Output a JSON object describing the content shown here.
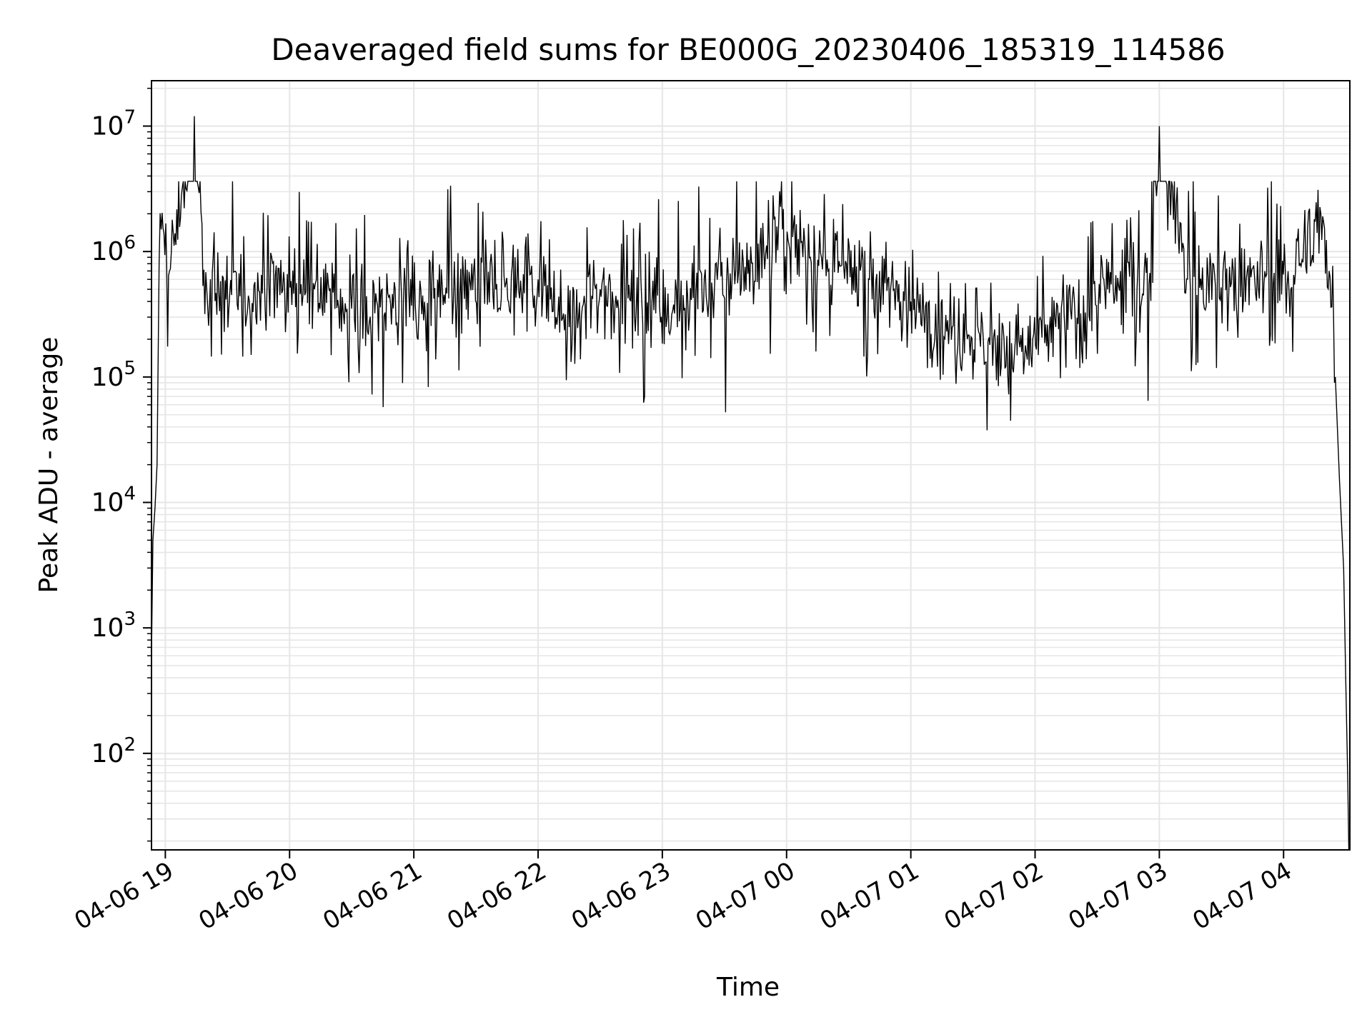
{
  "chart_data": {
    "type": "line",
    "title": "Deaveraged field sums for BE000G_20230406_185319_114586",
    "xlabel": "Time",
    "ylabel": "Peak ADU - average",
    "yscale": "log",
    "ylim": [
      17,
      23000000
    ],
    "xlim": [
      "2023-04-06T18:53:19",
      "2023-04-07T04:32:00"
    ],
    "grid": {
      "major": true,
      "minor_y": true,
      "color": "#e6e6e6"
    },
    "x_ticks": [
      {
        "t": "2023-04-06T19:00",
        "label": "04-06 19"
      },
      {
        "t": "2023-04-06T20:00",
        "label": "04-06 20"
      },
      {
        "t": "2023-04-06T21:00",
        "label": "04-06 21"
      },
      {
        "t": "2023-04-06T22:00",
        "label": "04-06 22"
      },
      {
        "t": "2023-04-06T23:00",
        "label": "04-06 23"
      },
      {
        "t": "2023-04-07T00:00",
        "label": "04-07 00"
      },
      {
        "t": "2023-04-07T01:00",
        "label": "04-07 01"
      },
      {
        "t": "2023-04-07T02:00",
        "label": "04-07 02"
      },
      {
        "t": "2023-04-07T03:00",
        "label": "04-07 03"
      },
      {
        "t": "2023-04-07T04:00",
        "label": "04-07 04"
      }
    ],
    "y_ticks": [
      {
        "value": 100,
        "base": "10",
        "exp": "2"
      },
      {
        "value": 1000,
        "base": "10",
        "exp": "3"
      },
      {
        "value": 10000,
        "base": "10",
        "exp": "4"
      },
      {
        "value": 100000,
        "base": "10",
        "exp": "5"
      },
      {
        "value": 1000000,
        "base": "10",
        "exp": "6"
      },
      {
        "value": 10000000,
        "base": "10",
        "exp": "7"
      }
    ],
    "series": [
      {
        "color": "#000000",
        "x": [
          "2023-04-06T18:53:19",
          "2023-04-06T18:54:00",
          "2023-04-06T18:55:00",
          "2023-04-06T18:56:00",
          "2023-04-06T18:57:00",
          "2023-04-06T18:58:00",
          "2023-04-06T19:02:00",
          "2023-04-06T19:14:00",
          "2023-04-06T19:20:00",
          "2023-04-06T19:32:00",
          "2023-04-06T19:50:00",
          "2023-04-06T20:10:00",
          "2023-04-06T20:12:00",
          "2023-04-06T20:30:00",
          "2023-04-06T20:55:00",
          "2023-04-06T20:58:00",
          "2023-04-06T21:20:00",
          "2023-04-06T21:40:00",
          "2023-04-06T22:00:00",
          "2023-04-06T22:15:00",
          "2023-04-06T22:30:00",
          "2023-04-06T22:55:00",
          "2023-04-06T23:10:00",
          "2023-04-06T23:35:00",
          "2023-04-06T23:58:00",
          "2023-04-07T00:20:00",
          "2023-04-07T00:40:00",
          "2023-04-07T01:00:00",
          "2023-04-07T01:20:00",
          "2023-04-07T01:35:00",
          "2023-04-07T01:50:00",
          "2023-04-07T02:10:00",
          "2023-04-07T02:35:00",
          "2023-04-07T02:55:00",
          "2023-04-07T03:00:00",
          "2023-04-07T03:15:00",
          "2023-04-07T03:42:00",
          "2023-04-07T03:55:00",
          "2023-04-07T04:08:00",
          "2023-04-07T04:18:00",
          "2023-04-07T04:22:00",
          "2023-04-07T04:25:00",
          "2023-04-07T04:27:00",
          "2023-04-07T04:29:00",
          "2023-04-07T04:30:00",
          "2023-04-07T04:31:00",
          "2023-04-07T04:31:30"
        ],
        "y": [
          600,
          5000,
          9000,
          20000,
          800000,
          1500000,
          700000,
          12000000,
          500000,
          450000,
          550000,
          600000,
          500000,
          350000,
          400000,
          300000,
          450000,
          550000,
          600000,
          250000,
          500000,
          400000,
          450000,
          550000,
          1500000,
          700000,
          600000,
          400000,
          250000,
          200000,
          150000,
          250000,
          500000,
          550000,
          10000000,
          500000,
          600000,
          550000,
          800000,
          2000000,
          700000,
          100000,
          15000,
          3000,
          400,
          60,
          17
        ]
      }
    ]
  }
}
